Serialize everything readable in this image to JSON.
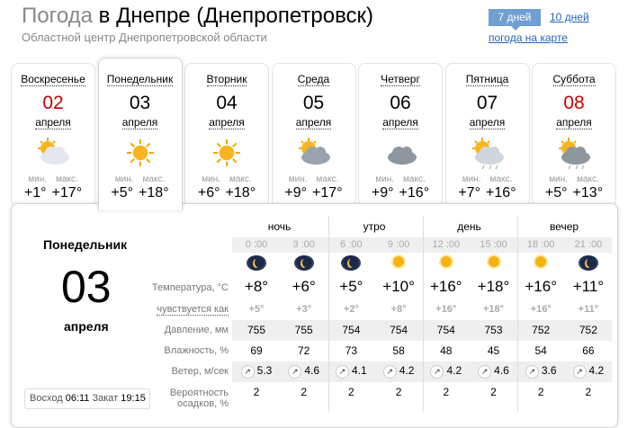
{
  "header": {
    "title_prefix": "Погода",
    "title_city": "в Днепре (Днепропетровск)",
    "subtitle": "Областной центр Днепропетровской области"
  },
  "nav": {
    "tab_7": "7 дней",
    "tab_10": "10 дней",
    "map_link": "погода на карте",
    "accent": "#6f9fd3"
  },
  "days": [
    {
      "name": "Воскресенье",
      "num": "02",
      "month": "апреля",
      "weekend": true,
      "icon": "partly-cloudy-icon",
      "min_label": "мин.",
      "max_label": "макс.",
      "min": "+1°",
      "max": "+17°"
    },
    {
      "name": "Понедельник",
      "num": "03",
      "month": "апреля",
      "weekend": false,
      "icon": "sun-icon",
      "min_label": "мин.",
      "max_label": "макс.",
      "min": "+5°",
      "max": "+18°",
      "selected": true
    },
    {
      "name": "Вторник",
      "num": "04",
      "month": "апреля",
      "weekend": false,
      "icon": "sun-icon",
      "min_label": "мин.",
      "max_label": "макс.",
      "min": "+6°",
      "max": "+18°"
    },
    {
      "name": "Среда",
      "num": "05",
      "month": "апреля",
      "weekend": false,
      "icon": "cloudy-sun-icon",
      "min_label": "мин.",
      "max_label": "макс.",
      "min": "+9°",
      "max": "+17°"
    },
    {
      "name": "Четверг",
      "num": "06",
      "month": "апреля",
      "weekend": false,
      "icon": "overcast-icon",
      "min_label": "мин.",
      "max_label": "макс.",
      "min": "+9°",
      "max": "+16°"
    },
    {
      "name": "Пятница",
      "num": "07",
      "month": "апреля",
      "weekend": false,
      "icon": "light-rain-sun-icon",
      "min_label": "мин.",
      "max_label": "макс.",
      "min": "+7°",
      "max": "+16°"
    },
    {
      "name": "Суббота",
      "num": "08",
      "month": "апреля",
      "weekend": true,
      "icon": "rain-sun-icon",
      "min_label": "мин.",
      "max_label": "макс.",
      "min": "+5°",
      "max": "+13°"
    }
  ],
  "detail": {
    "day_name": "Понедельник",
    "day_num": "03",
    "month": "апреля",
    "sunrise_label": "Восход",
    "sunrise": "06:11",
    "sunset_label": "Закат",
    "sunset": "19:15",
    "periods": [
      "ночь",
      "утро",
      "день",
      "вечер"
    ],
    "times": [
      "0 :00",
      "3 :00",
      "6 :00",
      "9 :00",
      "12 :00",
      "15 :00",
      "18 :00",
      "21 :00"
    ],
    "icons": [
      "moon",
      "moon",
      "moon",
      "sun",
      "sun",
      "sun",
      "sun",
      "moon"
    ],
    "labels": {
      "temp": "Температура, °C",
      "feels": "чувствуется как",
      "pressure": "Давление, мм",
      "humidity": "Влажность, %",
      "wind": "Ветер, м/сек",
      "precip1": "Вероятность",
      "precip2": "осадков, %"
    },
    "temp": [
      "+8°",
      "+6°",
      "+5°",
      "+10°",
      "+16°",
      "+18°",
      "+16°",
      "+11°"
    ],
    "feels": [
      "+5°",
      "+3°",
      "+2°",
      "+8°",
      "+16°",
      "+18°",
      "+16°",
      "+11°"
    ],
    "pressure": [
      "755",
      "755",
      "754",
      "754",
      "754",
      "753",
      "752",
      "752"
    ],
    "humidity": [
      "69",
      "72",
      "73",
      "58",
      "48",
      "45",
      "54",
      "66"
    ],
    "wind": [
      "5.3",
      "4.6",
      "4.1",
      "4.2",
      "4.2",
      "4.6",
      "3.6",
      "4.2"
    ],
    "wind_dir_icon": "arrow-northeast-icon",
    "precip": [
      "2",
      "2",
      "2",
      "2",
      "2",
      "2",
      "2",
      "2"
    ]
  }
}
